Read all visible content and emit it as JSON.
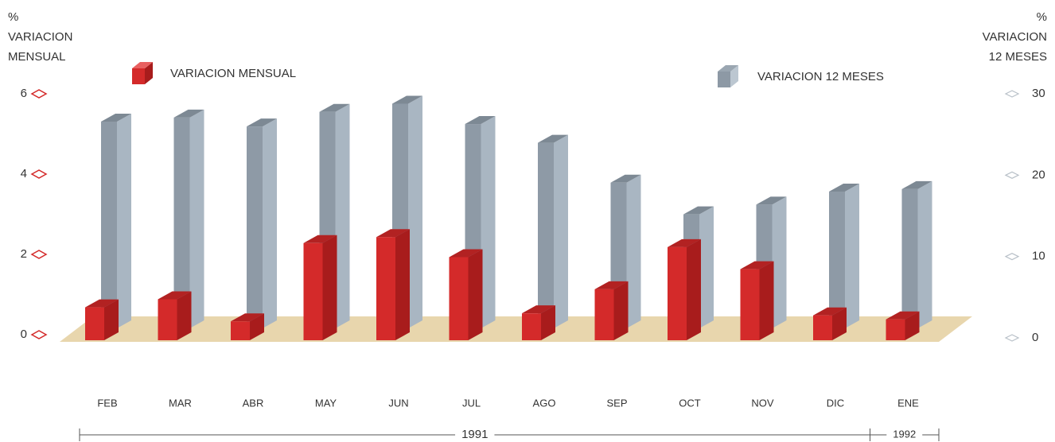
{
  "chart_data": {
    "type": "bar3d",
    "ylabel": [
      "%",
      "VARIACION",
      "MENSUAL"
    ],
    "y2label": [
      "%",
      "VARIACION",
      "12 MESES"
    ],
    "categories": [
      "FEB",
      "MAR",
      "ABR",
      "MAY",
      "JUN",
      "JUL",
      "AGO",
      "SEP",
      "OCT",
      "NOV",
      "DIC",
      "ENE"
    ],
    "series": [
      {
        "name": "VARIACION MENSUAL",
        "color": "#d42a2a",
        "values": [
          0.8,
          1.0,
          0.45,
          2.4,
          2.55,
          2.05,
          0.65,
          1.25,
          2.3,
          1.75,
          0.6,
          0.5
        ]
      },
      {
        "name": "VARIACION 12 MESES",
        "color": "#a9b6c2",
        "axis": "y2",
        "values": [
          25.8,
          26.3,
          25.2,
          27.0,
          28.0,
          25.5,
          23.2,
          18.3,
          14.4,
          15.6,
          17.2,
          17.5
        ]
      }
    ],
    "ylim": [
      0,
      6
    ],
    "yticks": [
      0,
      2,
      4,
      6
    ],
    "y2lim": [
      0,
      30
    ],
    "y2ticks": [
      0,
      10,
      20,
      30
    ],
    "years": [
      "1991",
      "1992"
    ]
  }
}
